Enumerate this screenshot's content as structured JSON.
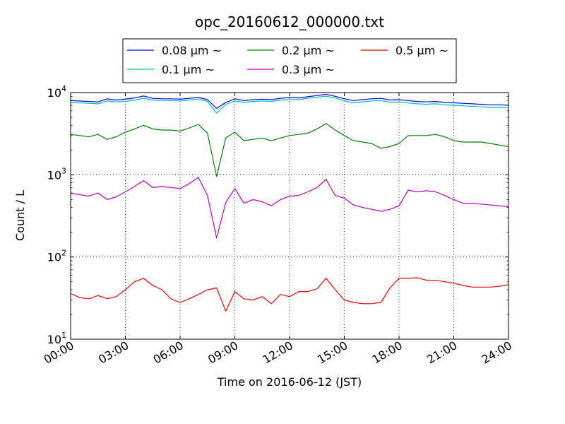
{
  "chart_data": {
    "type": "line",
    "title": "opc_20160612_000000.txt",
    "xlabel": "Time on 2016-06-12 (JST)",
    "ylabel": "Count / L",
    "xlim": [
      "00:00",
      "24:00"
    ],
    "ylim": [
      10,
      10000
    ],
    "yscale": "log",
    "grid": true,
    "legend_position": "top-center",
    "xticks": [
      "00:00",
      "03:00",
      "06:00",
      "09:00",
      "12:00",
      "15:00",
      "18:00",
      "21:00",
      "24:00"
    ],
    "yticks": [
      {
        "base": "10",
        "exp": "1"
      },
      {
        "base": "10",
        "exp": "2"
      },
      {
        "base": "10",
        "exp": "3"
      },
      {
        "base": "10",
        "exp": "4"
      }
    ],
    "x": [
      "00:00",
      "00:30",
      "01:00",
      "01:30",
      "02:00",
      "02:30",
      "03:00",
      "03:30",
      "04:00",
      "04:30",
      "05:00",
      "05:30",
      "06:00",
      "06:30",
      "07:00",
      "07:30",
      "08:00",
      "08:30",
      "09:00",
      "09:30",
      "10:00",
      "10:30",
      "11:00",
      "11:30",
      "12:00",
      "12:30",
      "13:00",
      "13:30",
      "14:00",
      "14:30",
      "15:00",
      "15:30",
      "16:00",
      "16:30",
      "17:00",
      "17:30",
      "18:00",
      "18:30",
      "19:00",
      "19:30",
      "20:00",
      "20:30",
      "21:00",
      "21:30",
      "22:00",
      "22:30",
      "23:00",
      "23:30",
      "24:00"
    ],
    "series": [
      {
        "name": "0.08 μm ~",
        "color": "#0000ff",
        "values": [
          8000,
          7900,
          7800,
          7700,
          8400,
          8100,
          8300,
          8600,
          9100,
          8500,
          8400,
          8400,
          8300,
          8500,
          8700,
          8200,
          6400,
          7600,
          8400,
          8000,
          8200,
          8300,
          8200,
          8500,
          8700,
          8600,
          8900,
          9200,
          9500,
          9000,
          8400,
          8000,
          8200,
          8400,
          8500,
          8100,
          8200,
          8000,
          7800,
          7700,
          7800,
          7600,
          7500,
          7400,
          7300,
          7200,
          7100,
          7100,
          7000
        ]
      },
      {
        "name": "0.1 μm ~",
        "color": "#00bfbf",
        "values": [
          7600,
          7500,
          7400,
          7300,
          7900,
          7700,
          7800,
          8100,
          8500,
          8100,
          8000,
          8000,
          7900,
          8100,
          8300,
          7800,
          5600,
          7200,
          7900,
          7600,
          7800,
          7900,
          7800,
          8100,
          8200,
          8200,
          8500,
          8800,
          9000,
          8600,
          7900,
          7500,
          7700,
          7900,
          8000,
          7600,
          7700,
          7500,
          7300,
          7200,
          7300,
          7100,
          7000,
          6900,
          6800,
          6700,
          6600,
          6600,
          6500
        ]
      },
      {
        "name": "0.2 μm ~",
        "color": "#008000",
        "values": [
          3100,
          3000,
          2900,
          3100,
          2700,
          2900,
          3300,
          3600,
          4000,
          3600,
          3500,
          3500,
          3400,
          3700,
          4100,
          3200,
          950,
          2800,
          3300,
          2600,
          2700,
          2800,
          2600,
          2800,
          3000,
          3100,
          3200,
          3600,
          4200,
          3500,
          3000,
          2600,
          2500,
          2400,
          2100,
          2200,
          2400,
          3000,
          3000,
          3000,
          3100,
          2900,
          2600,
          2500,
          2500,
          2500,
          2400,
          2300,
          2200
        ]
      },
      {
        "name": "0.3 μm ~",
        "color": "#bf00bf",
        "values": [
          600,
          570,
          550,
          600,
          500,
          540,
          620,
          720,
          850,
          700,
          720,
          700,
          680,
          780,
          930,
          560,
          170,
          460,
          680,
          450,
          500,
          470,
          420,
          500,
          550,
          560,
          620,
          700,
          880,
          560,
          520,
          430,
          400,
          380,
          360,
          380,
          420,
          650,
          620,
          640,
          620,
          560,
          500,
          450,
          450,
          440,
          430,
          420,
          410
        ]
      },
      {
        "name": "0.5 μm ~",
        "color": "#ff0000",
        "values": [
          36,
          32,
          31,
          34,
          31,
          33,
          40,
          50,
          55,
          45,
          40,
          31,
          28,
          31,
          35,
          40,
          42,
          22,
          38,
          31,
          30,
          33,
          27,
          35,
          33,
          38,
          38,
          41,
          55,
          40,
          30,
          28,
          27,
          27,
          28,
          42,
          55,
          55,
          56,
          52,
          52,
          50,
          48,
          45,
          43,
          43,
          43,
          44,
          46
        ]
      }
    ]
  }
}
